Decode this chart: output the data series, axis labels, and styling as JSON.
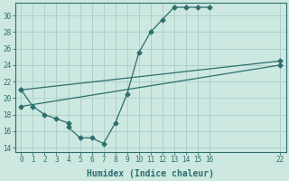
{
  "xlabel": "Humidex (Indice chaleur)",
  "ylabel": "",
  "bg_color": "#cce8e0",
  "grid_color": "#aacccc",
  "line_color": "#2d6e6e",
  "xlim": [
    -0.5,
    22.5
  ],
  "ylim": [
    13.5,
    31.5
  ],
  "xticks": [
    0,
    1,
    2,
    3,
    4,
    5,
    6,
    7,
    8,
    9,
    10,
    11,
    12,
    13,
    14,
    15,
    16,
    22
  ],
  "yticks": [
    14,
    16,
    18,
    20,
    22,
    24,
    26,
    28,
    30
  ],
  "line1_x": [
    0,
    1,
    2,
    3,
    4,
    4,
    5,
    6,
    7,
    8,
    9,
    10,
    11,
    12,
    13,
    14,
    15,
    16
  ],
  "line1_y": [
    21,
    19,
    18,
    17.5,
    17,
    16.5,
    15.2,
    15.2,
    14.5,
    17,
    20.5,
    25.5,
    28,
    29.5,
    31,
    31,
    31,
    31
  ],
  "line2_x": [
    0,
    22
  ],
  "line2_y": [
    21,
    24.5
  ],
  "line3_x": [
    0,
    22
  ],
  "line3_y": [
    19,
    24.0
  ],
  "xlabel_fontsize": 7,
  "tick_fontsize": 5.5,
  "marker_size": 2.5,
  "linewidth": 0.9
}
